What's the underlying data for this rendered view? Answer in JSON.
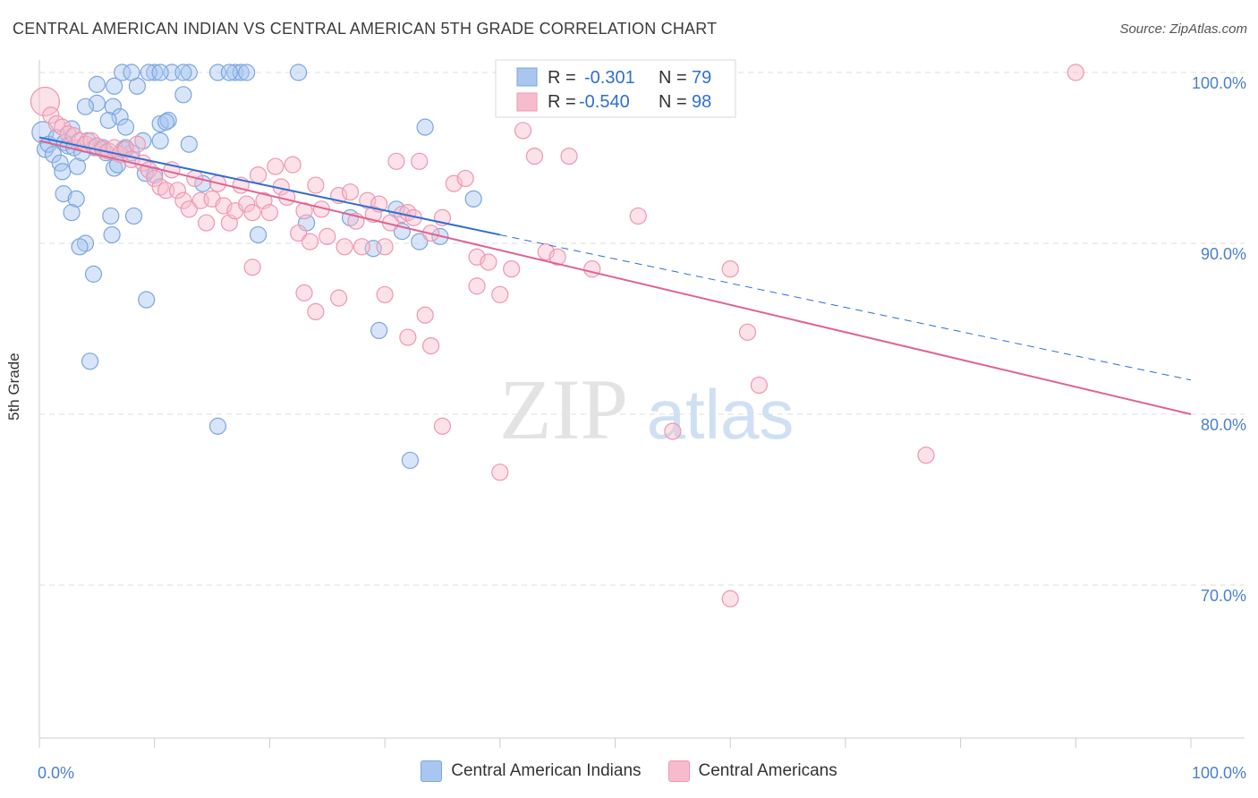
{
  "title": "CENTRAL AMERICAN INDIAN VS CENTRAL AMERICAN 5TH GRADE CORRELATION CHART",
  "source": "Source: ZipAtlas.com",
  "watermark": {
    "zip": "ZIP",
    "atlas": "atlas"
  },
  "colors": {
    "blue_fill": "#a9c6f0",
    "blue_stroke": "#7aa6e0",
    "blue_line": "#2f6fd0",
    "pink_fill": "#f6bccd",
    "pink_stroke": "#ee97b2",
    "pink_line": "#e0628f",
    "tick_text": "#4a7fd0",
    "grid": "#dddddd",
    "axis": "#cccccc"
  },
  "legend_top": [
    {
      "r_label": "R =",
      "r_value": "-0.301",
      "n_label": "N =",
      "n_value": "79"
    },
    {
      "r_label": "R =",
      "r_value": "-0.540",
      "n_label": "N =",
      "n_value": "98"
    }
  ],
  "chart_data": {
    "type": "scatter",
    "title": "CENTRAL AMERICAN INDIAN VS CENTRAL AMERICAN 5TH GRADE CORRELATION CHART",
    "xlabel": "",
    "ylabel": "5th Grade",
    "xlim": [
      0,
      100
    ],
    "ylim": [
      60,
      102
    ],
    "x_tick_labels": [
      "0.0%",
      "100.0%"
    ],
    "y_ticks": [
      70,
      80,
      90,
      100
    ],
    "y_tick_labels": [
      "70.0%",
      "80.0%",
      "90.0%",
      "100.0%"
    ],
    "grid": true,
    "legend_position": "top-center",
    "series": [
      {
        "name": "Central American Indians",
        "color": "#a9c6f0",
        "r": -0.301,
        "n": 79,
        "trend": {
          "x0": 0,
          "y0": 96.2,
          "x1": 40,
          "y1": 90.5,
          "dashed_to_x": 100,
          "dashed_to_y": 82.0
        },
        "points": [
          [
            0.3,
            96.5
          ],
          [
            0.5,
            95.5
          ],
          [
            0.8,
            95.8
          ],
          [
            1.2,
            95.2
          ],
          [
            1.5,
            96.2
          ],
          [
            1.8,
            94.7
          ],
          [
            2.0,
            94.2
          ],
          [
            2.2,
            95.9
          ],
          [
            2.5,
            95.7
          ],
          [
            2.8,
            96.7
          ],
          [
            3.0,
            95.6
          ],
          [
            3.3,
            94.5
          ],
          [
            3.7,
            95.3
          ],
          [
            4.2,
            96.0
          ],
          [
            4.8,
            95.6
          ],
          [
            5.5,
            95.6
          ],
          [
            6.5,
            94.4
          ],
          [
            7.3,
            95.5
          ],
          [
            8.0,
            95.3
          ],
          [
            9.0,
            96.0
          ],
          [
            10.5,
            96.0
          ],
          [
            2.1,
            92.9
          ],
          [
            3.2,
            92.6
          ],
          [
            2.8,
            91.8
          ],
          [
            4.0,
            90.0
          ],
          [
            6.2,
            91.6
          ],
          [
            8.2,
            91.6
          ],
          [
            6.3,
            90.5
          ],
          [
            3.5,
            89.8
          ],
          [
            4.7,
            88.2
          ],
          [
            9.3,
            86.7
          ],
          [
            4.4,
            83.1
          ],
          [
            15.5,
            79.3
          ],
          [
            5.0,
            98.2
          ],
          [
            6.4,
            98.0
          ],
          [
            7.0,
            97.4
          ],
          [
            7.5,
            96.8
          ],
          [
            10.5,
            97.0
          ],
          [
            11.2,
            97.2
          ],
          [
            13.0,
            95.8
          ],
          [
            14.2,
            93.5
          ],
          [
            8.5,
            99.2
          ],
          [
            12.5,
            98.7
          ],
          [
            7.2,
            100
          ],
          [
            10.0,
            100
          ],
          [
            11.5,
            100
          ],
          [
            13.0,
            100
          ],
          [
            15.5,
            100
          ],
          [
            17.0,
            100
          ],
          [
            17.5,
            100
          ],
          [
            18.0,
            100
          ],
          [
            8.0,
            100
          ],
          [
            9.5,
            100
          ],
          [
            10.5,
            100
          ],
          [
            16.5,
            100
          ],
          [
            22.5,
            100
          ],
          [
            12.5,
            100
          ],
          [
            5.0,
            99.3
          ],
          [
            6.5,
            99.2
          ],
          [
            7.5,
            95.6
          ],
          [
            10.0,
            94.0
          ],
          [
            19.0,
            90.5
          ],
          [
            23.2,
            91.2
          ],
          [
            27.0,
            91.5
          ],
          [
            29.0,
            89.7
          ],
          [
            31.0,
            92.0
          ],
          [
            31.5,
            90.7
          ],
          [
            33.0,
            90.1
          ],
          [
            34.8,
            90.4
          ],
          [
            33.5,
            96.8
          ],
          [
            37.7,
            92.6
          ],
          [
            29.5,
            84.9
          ],
          [
            32.2,
            77.3
          ],
          [
            5.8,
            95.3
          ],
          [
            6.8,
            94.6
          ],
          [
            9.2,
            94.1
          ],
          [
            4.0,
            98.0
          ],
          [
            11.0,
            97.1
          ],
          [
            6.0,
            97.2
          ]
        ]
      },
      {
        "name": "Central Americans",
        "color": "#f6bccd",
        "r": -0.54,
        "n": 98,
        "trend": {
          "x0": 0,
          "y0": 96.0,
          "x1": 100,
          "y1": 80.0
        },
        "points": [
          [
            0.5,
            98.3
          ],
          [
            1.0,
            97.5
          ],
          [
            1.5,
            97.0
          ],
          [
            2.0,
            96.8
          ],
          [
            2.5,
            96.4
          ],
          [
            3.0,
            96.3
          ],
          [
            3.5,
            96.0
          ],
          [
            4.0,
            95.8
          ],
          [
            4.5,
            96.0
          ],
          [
            5.0,
            95.7
          ],
          [
            5.5,
            95.5
          ],
          [
            6.0,
            95.4
          ],
          [
            6.5,
            95.6
          ],
          [
            7.0,
            95.2
          ],
          [
            7.5,
            95.5
          ],
          [
            8.0,
            94.9
          ],
          [
            8.5,
            95.8
          ],
          [
            9.0,
            94.7
          ],
          [
            9.5,
            94.3
          ],
          [
            10.0,
            93.8
          ],
          [
            10.5,
            93.3
          ],
          [
            11.0,
            93.1
          ],
          [
            11.5,
            94.3
          ],
          [
            12.0,
            93.1
          ],
          [
            12.5,
            92.5
          ],
          [
            13.0,
            92.0
          ],
          [
            13.5,
            93.8
          ],
          [
            14.0,
            92.5
          ],
          [
            14.5,
            91.2
          ],
          [
            15.0,
            92.6
          ],
          [
            15.5,
            93.5
          ],
          [
            16.0,
            92.2
          ],
          [
            16.5,
            91.2
          ],
          [
            17.0,
            91.9
          ],
          [
            17.5,
            93.4
          ],
          [
            18.0,
            92.3
          ],
          [
            18.5,
            91.8
          ],
          [
            19.0,
            94.0
          ],
          [
            19.5,
            92.5
          ],
          [
            20.0,
            91.8
          ],
          [
            20.5,
            94.5
          ],
          [
            21.0,
            93.3
          ],
          [
            21.5,
            92.7
          ],
          [
            22.0,
            94.6
          ],
          [
            22.5,
            90.6
          ],
          [
            23.0,
            91.9
          ],
          [
            23.5,
            90.1
          ],
          [
            24.0,
            93.4
          ],
          [
            24.5,
            92.0
          ],
          [
            25.0,
            90.4
          ],
          [
            26.0,
            92.8
          ],
          [
            26.5,
            89.8
          ],
          [
            27.0,
            93.0
          ],
          [
            27.5,
            91.3
          ],
          [
            28.0,
            89.8
          ],
          [
            28.5,
            92.5
          ],
          [
            29.0,
            91.7
          ],
          [
            29.5,
            92.3
          ],
          [
            30.0,
            89.8
          ],
          [
            30.5,
            91.2
          ],
          [
            31.0,
            94.8
          ],
          [
            31.5,
            91.7
          ],
          [
            32.0,
            91.8
          ],
          [
            32.5,
            91.5
          ],
          [
            33.0,
            94.8
          ],
          [
            34.0,
            90.6
          ],
          [
            35.0,
            91.5
          ],
          [
            36.0,
            93.5
          ],
          [
            37.0,
            93.8
          ],
          [
            38.0,
            89.2
          ],
          [
            39.0,
            88.9
          ],
          [
            40.0,
            87.0
          ],
          [
            41.0,
            88.5
          ],
          [
            42.0,
            96.6
          ],
          [
            43.0,
            95.1
          ],
          [
            44.0,
            89.5
          ],
          [
            45.0,
            89.2
          ],
          [
            46.0,
            95.1
          ],
          [
            48.0,
            88.5
          ],
          [
            52.0,
            91.6
          ],
          [
            55.0,
            79.0
          ],
          [
            60.0,
            88.5
          ],
          [
            61.5,
            84.8
          ],
          [
            62.5,
            81.7
          ],
          [
            77.0,
            77.6
          ],
          [
            90.0,
            100
          ],
          [
            60.0,
            69.2
          ],
          [
            35.0,
            79.3
          ],
          [
            40.0,
            76.6
          ],
          [
            32.0,
            84.5
          ],
          [
            34.0,
            84.0
          ],
          [
            30.0,
            87.0
          ],
          [
            23.0,
            87.1
          ],
          [
            26.0,
            86.8
          ],
          [
            18.5,
            88.6
          ],
          [
            38.0,
            87.5
          ],
          [
            33.5,
            85.8
          ],
          [
            24.0,
            86.0
          ]
        ]
      }
    ]
  },
  "bottom_legend": [
    "Central American Indians",
    "Central Americans"
  ]
}
